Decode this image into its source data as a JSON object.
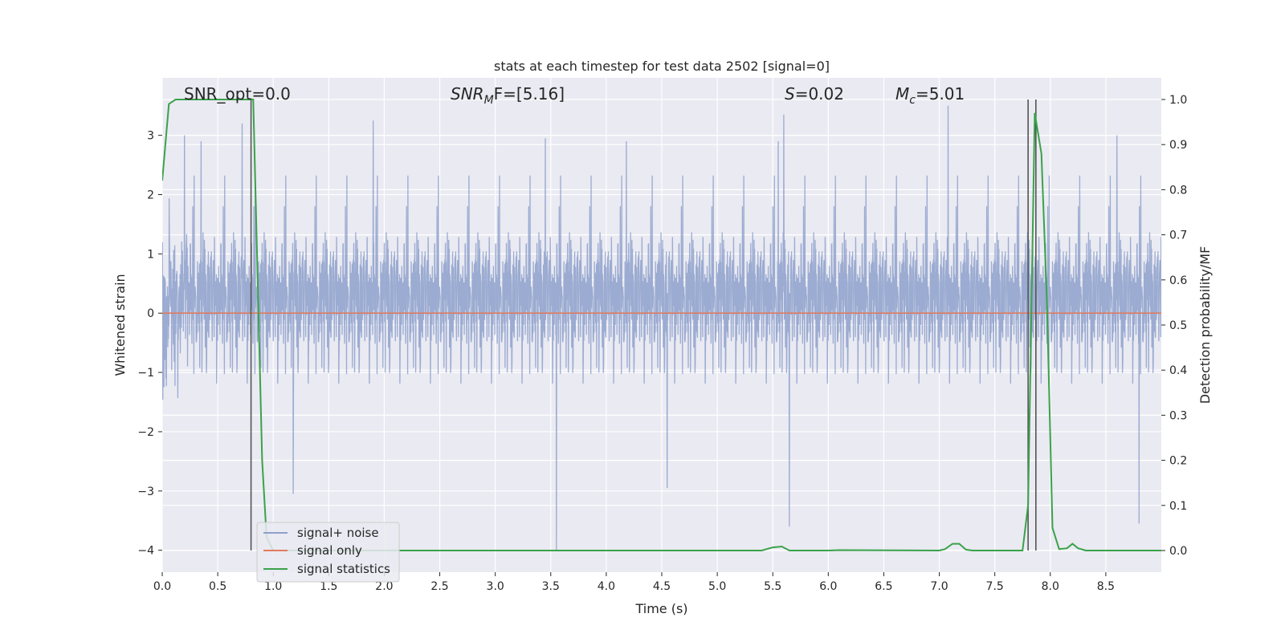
{
  "chart_data": {
    "type": "line",
    "title": "stats at each timestep for test data 2502 [signal=0]",
    "xlabel": "Time (s)",
    "ylabel_left": "Whitened strain",
    "ylabel_right": "Detection probability/MF",
    "xlim": [
      0.0,
      9.0
    ],
    "ylim_left": [
      -4.37,
      3.97
    ],
    "ylim_right": [
      -0.048,
      1.048
    ],
    "xticks": [
      0.0,
      0.5,
      1.0,
      1.5,
      2.0,
      2.5,
      3.0,
      3.5,
      4.0,
      4.5,
      5.0,
      5.5,
      6.0,
      6.5,
      7.0,
      7.5,
      8.0,
      8.5
    ],
    "xtick_labels": [
      "0.0",
      "0.5",
      "1.0",
      "1.5",
      "2.0",
      "2.5",
      "3.0",
      "3.5",
      "4.0",
      "4.5",
      "5.0",
      "5.5",
      "6.0",
      "6.5",
      "7.0",
      "7.5",
      "8.0",
      "8.5"
    ],
    "yticks_left": [
      -4,
      -3,
      -2,
      -1,
      0,
      1,
      2,
      3
    ],
    "ytick_labels_left": [
      "−4",
      "−3",
      "−2",
      "−1",
      "0",
      "1",
      "2",
      "3"
    ],
    "yticks_right": [
      0.0,
      0.1,
      0.2,
      0.3,
      0.4,
      0.5,
      0.6,
      0.7,
      0.8,
      0.9,
      1.0
    ],
    "ytick_labels_right": [
      "0.0",
      "0.1",
      "0.2",
      "0.3",
      "0.4",
      "0.5",
      "0.6",
      "0.7",
      "0.8",
      "0.9",
      "1.0"
    ],
    "grid": true,
    "legend_position": "lower-left",
    "annotations": {
      "snr_opt": "SNR_opt=0.0",
      "snr_mf_main": "SNR",
      "snr_mf_sub": "M",
      "snr_mf_tail": "F=[5.16]",
      "s_main": "S",
      "s_tail": "=0.02",
      "mc_main": "M",
      "mc_sub": "c",
      "mc_tail": "=5.01"
    },
    "series": [
      {
        "name": "signal+ noise",
        "color": "#8da0cb",
        "axis": "left",
        "description_values": {
          "envelope_min": -4.0,
          "envelope_max": 3.5,
          "typical_range": [
            -1.8,
            2.0
          ]
        },
        "spikes": [
          {
            "x": 0.2,
            "y": 3.0
          },
          {
            "x": 0.35,
            "y": 2.9
          },
          {
            "x": 0.72,
            "y": 3.2
          },
          {
            "x": 1.9,
            "y": 3.25
          },
          {
            "x": 3.45,
            "y": 2.95
          },
          {
            "x": 4.18,
            "y": 2.9
          },
          {
            "x": 5.55,
            "y": 2.9
          },
          {
            "x": 5.6,
            "y": 3.35
          },
          {
            "x": 7.08,
            "y": 3.5
          },
          {
            "x": 8.6,
            "y": 3.0
          },
          {
            "x": 3.55,
            "y": -4.0
          },
          {
            "x": 5.65,
            "y": -3.6
          },
          {
            "x": 8.8,
            "y": -3.55
          },
          {
            "x": 1.18,
            "y": -3.05
          },
          {
            "x": 4.55,
            "y": -2.95
          }
        ]
      },
      {
        "name": "signal only",
        "color": "#e07b5f",
        "axis": "left",
        "x": [
          0.0,
          9.0
        ],
        "values": [
          0.0,
          0.0
        ]
      },
      {
        "name": "signal statistics",
        "color": "#3aa24a",
        "axis": "right",
        "x": [
          0.0,
          0.06,
          0.12,
          0.2,
          0.3,
          0.4,
          0.5,
          0.6,
          0.7,
          0.78,
          0.82,
          0.9,
          0.94,
          1.0,
          2.0,
          3.0,
          4.0,
          5.0,
          5.4,
          5.5,
          5.58,
          5.65,
          6.0,
          6.1,
          7.0,
          7.05,
          7.12,
          7.18,
          7.24,
          7.3,
          7.4,
          7.5,
          7.6,
          7.7,
          7.75,
          7.8,
          7.86,
          7.92,
          7.97,
          8.02,
          8.08,
          8.15,
          8.2,
          8.25,
          8.32,
          8.5,
          9.0
        ],
        "values": [
          0.82,
          0.99,
          1.0,
          1.0,
          1.0,
          1.0,
          1.0,
          1.0,
          1.0,
          1.0,
          1.0,
          0.2,
          0.03,
          0.0,
          0.0,
          0.0,
          0.0,
          0.0,
          0.0,
          0.007,
          0.009,
          0.0,
          0.0,
          0.001,
          0.0,
          0.003,
          0.015,
          0.015,
          0.002,
          0.0,
          0.0,
          0.0,
          0.0,
          0.0,
          0.0,
          0.1,
          0.97,
          0.88,
          0.55,
          0.05,
          0.003,
          0.005,
          0.015,
          0.005,
          0.0,
          0.0,
          0.0
        ]
      }
    ],
    "vertical_lines": [
      0.8,
      7.8,
      7.87
    ]
  }
}
